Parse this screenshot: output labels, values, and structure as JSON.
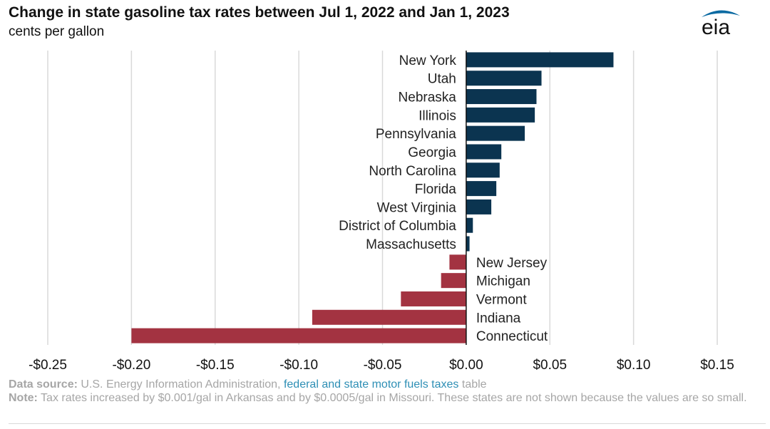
{
  "header": {
    "title": "Change in state gasoline tax rates between Jul 1, 2022 and Jan 1, 2023",
    "subtitle": "cents per gallon",
    "logo_text": "eia"
  },
  "footer": {
    "source_label": "Data source:",
    "source_text_1": "U.S. Energy Information Administration,",
    "source_link": "federal and state motor fuels taxes",
    "source_text_2": "table",
    "note_label": "Note:",
    "note_text": "Tax rates increased by $0.001/gal in Arkansas and by $0.0005/gal in Missouri. These states are not shown because the values are so small."
  },
  "colors": {
    "positive": "#0b3450",
    "negative": "#a33341",
    "grid": "#d9d9d9",
    "logo": "#0b6aa2"
  },
  "chart_data": {
    "type": "bar",
    "orientation": "horizontal",
    "title": "Change in state gasoline tax rates between Jul 1, 2022 and Jan 1, 2023",
    "subtitle": "cents per gallon",
    "categories": [
      "New York",
      "Utah",
      "Nebraska",
      "Illinois",
      "Pennsylvania",
      "Georgia",
      "North Carolina",
      "Florida",
      "West Virginia",
      "District of Columbia",
      "Massachusetts",
      "New Jersey",
      "Michigan",
      "Vermont",
      "Indiana",
      "Connecticut"
    ],
    "values": [
      0.088,
      0.045,
      0.042,
      0.041,
      0.035,
      0.021,
      0.02,
      0.018,
      0.015,
      0.004,
      0.002,
      -0.01,
      -0.015,
      -0.039,
      -0.092,
      -0.2
    ],
    "xlim": [
      -0.25,
      0.15
    ],
    "xticks": [
      -0.25,
      -0.2,
      -0.15,
      -0.1,
      -0.05,
      0.0,
      0.05,
      0.1,
      0.15
    ],
    "xtick_labels": [
      "-$0.25",
      "-$0.20",
      "-$0.15",
      "-$0.10",
      "-$0.05",
      "$0.00",
      "$0.05",
      "$0.10",
      "$0.15"
    ],
    "grid": true
  }
}
